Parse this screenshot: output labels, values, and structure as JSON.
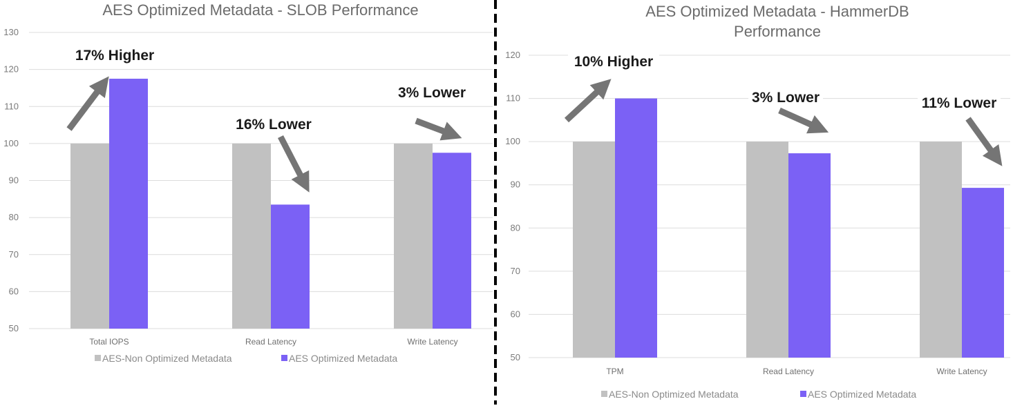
{
  "colors": {
    "series_non_optimized": "#c1c1c1",
    "series_optimized": "#7b61f5",
    "arrow": "#757575",
    "divider": "#000000"
  },
  "chart_data": [
    {
      "type": "bar",
      "title": "AES Optimized Metadata - SLOB Performance",
      "categories": [
        "Total IOPS",
        "Read Latency",
        "Write Latency"
      ],
      "series": [
        {
          "name": "AES-Non Optimized Metadata",
          "values": [
            100,
            100,
            100
          ]
        },
        {
          "name": "AES Optimized Metadata",
          "values": [
            117.5,
            83.5,
            97.5
          ]
        }
      ],
      "ylim": [
        50,
        130
      ],
      "yticks": [
        "50",
        "60",
        "70",
        "80",
        "90",
        "100",
        "110",
        "120",
        "130"
      ],
      "xlabel": "",
      "ylabel": "",
      "grid": true,
      "legend": "bottom",
      "annotations": [
        {
          "text": "17% Higher",
          "direction": "up"
        },
        {
          "text": "16% Lower",
          "direction": "down"
        },
        {
          "text": "3% Lower",
          "direction": "down"
        }
      ]
    },
    {
      "type": "bar",
      "title": "AES Optimized Metadata - HammerDB Performance",
      "title_lines": [
        "AES Optimized Metadata - HammerDB",
        "Performance"
      ],
      "categories": [
        "TPM",
        "Read Latency",
        "Write Latency"
      ],
      "series": [
        {
          "name": "AES-Non Optimized Metadata",
          "values": [
            100,
            100,
            100
          ]
        },
        {
          "name": "AES Optimized Metadata",
          "values": [
            110,
            97.3,
            89.3
          ]
        }
      ],
      "ylim": [
        50,
        120
      ],
      "yticks": [
        "50",
        "60",
        "70",
        "80",
        "90",
        "100",
        "110",
        "120"
      ],
      "xlabel": "",
      "ylabel": "",
      "grid": true,
      "legend": "bottom",
      "annotations": [
        {
          "text": "10% Higher",
          "direction": "up"
        },
        {
          "text": "3% Lower",
          "direction": "down"
        },
        {
          "text": "11% Lower",
          "direction": "down"
        }
      ]
    }
  ]
}
